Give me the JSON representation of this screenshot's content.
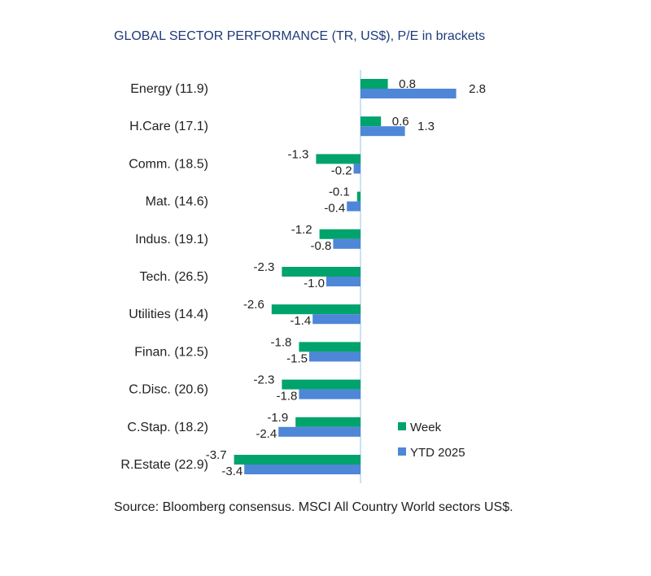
{
  "chart_data": {
    "type": "bar",
    "orientation": "horizontal",
    "title": "GLOBAL SECTOR PERFORMANCE (TR, US$), P/E in brackets",
    "categories": [
      "Energy (11.9)",
      "H.Care (17.1)",
      "Comm. (18.5)",
      "Mat. (14.6)",
      "Indus. (19.1)",
      "Tech. (26.5)",
      "Utilities (14.4)",
      "Finan. (12.5)",
      "C.Disc. (20.6)",
      "C.Stap. (18.2)",
      "R.Estate (22.9)"
    ],
    "series": [
      {
        "name": "Week",
        "color": "#00a36c",
        "values": [
          0.8,
          0.6,
          -1.3,
          -0.1,
          -1.2,
          -2.3,
          -2.6,
          -1.8,
          -2.3,
          -1.9,
          -3.7
        ],
        "labels": [
          "0.8",
          "0.6",
          "-1.3",
          "-0.1",
          "-1.2",
          "-2.3",
          "-2.6",
          "-1.8",
          "-2.3",
          "-1.9",
          "-3.7"
        ]
      },
      {
        "name": "YTD 2025",
        "color": "#4e86d8",
        "values": [
          2.8,
          1.3,
          -0.2,
          -0.4,
          -0.8,
          -1.0,
          -1.4,
          -1.5,
          -1.8,
          -2.4,
          -3.4
        ],
        "labels": [
          "2.8",
          "1.3",
          "-0.2",
          "-0.4",
          "-0.8",
          "-1.0",
          "-1.4",
          "-1.5",
          "-1.8",
          "-2.4",
          "-3.4"
        ]
      }
    ],
    "xlim": [
      -3.7,
      3.0
    ],
    "legend_position": "bottom-right",
    "xlabel": "",
    "ylabel": ""
  },
  "source": "Source: Bloomberg consensus. MSCI All Country World sectors US$."
}
